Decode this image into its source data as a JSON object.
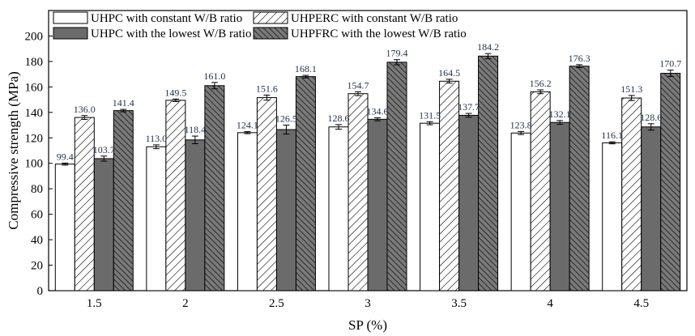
{
  "chart_data": {
    "type": "bar",
    "xlabel": "SP (%)",
    "ylabel": "Compressive strength (MPa)",
    "ylim": [
      0,
      220
    ],
    "yticks": [
      0,
      20,
      40,
      60,
      80,
      100,
      120,
      140,
      160,
      180,
      200
    ],
    "categories": [
      "1.5",
      "2",
      "2.5",
      "3",
      "3.5",
      "4",
      "4.5"
    ],
    "legend_position": "top",
    "error_bars": true,
    "series": [
      {
        "name": "UHPC with constant W/B ratio",
        "fill": "white",
        "values": [
          99.4,
          113.0,
          124.1,
          128.6,
          131.5,
          123.8,
          116.1
        ],
        "labels": [
          "99.4",
          "113.0",
          "124.1",
          "128.6",
          "131.5",
          "123.8",
          "116.1"
        ],
        "errors": [
          0.8,
          1.5,
          0.8,
          1.8,
          1.2,
          1.2,
          0.8
        ]
      },
      {
        "name": "UHPC with the lowest W/B ratio",
        "fill": "dark-gray",
        "values": [
          103.7,
          118.4,
          126.5,
          134.6,
          137.7,
          132.1,
          128.6
        ],
        "labels": [
          "103.7",
          "118.4",
          "126.5",
          "134.6",
          "137.7",
          "132.1",
          "128.6"
        ],
        "errors": [
          2.0,
          3.0,
          3.5,
          1.2,
          1.5,
          1.5,
          2.5
        ]
      },
      {
        "name": "UHPERC with constant W/B ratio",
        "fill": "diagonal-hatch-light",
        "values": [
          136.0,
          149.5,
          151.6,
          154.7,
          164.5,
          156.2,
          151.3
        ],
        "labels": [
          "136.0",
          "149.5",
          "151.6",
          "154.7",
          "164.5",
          "156.2",
          "151.3"
        ],
        "errors": [
          1.5,
          1.0,
          2.0,
          1.5,
          1.5,
          1.5,
          2.0
        ]
      },
      {
        "name": "UHPFRC with the lowest W/B ratio",
        "fill": "diagonal-hatch-dark",
        "values": [
          141.4,
          161.0,
          168.1,
          179.4,
          184.2,
          176.3,
          170.7
        ],
        "labels": [
          "141.4",
          "161.0",
          "168.1",
          "179.4",
          "184.2",
          "176.3",
          "170.7"
        ],
        "errors": [
          1.0,
          2.5,
          1.0,
          2.0,
          2.0,
          1.2,
          2.5
        ]
      }
    ]
  },
  "colors": {
    "bar_stroke": "#000000",
    "plain_fill": "#ffffff",
    "dark_fill": "#6b6b6b",
    "dark_hatch_bg": "#7a7a7a",
    "data_label": "#1f2f4a"
  }
}
